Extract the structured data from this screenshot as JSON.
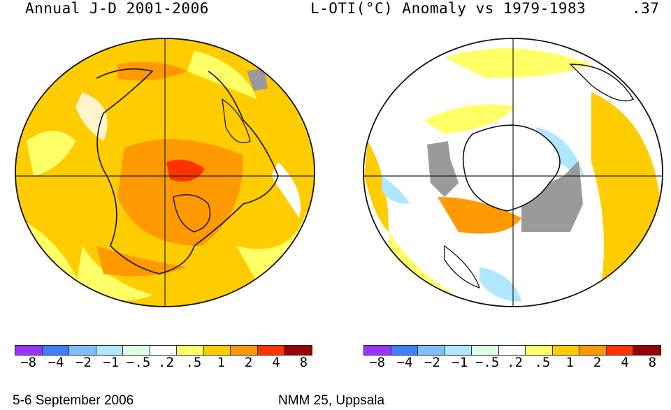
{
  "header": {
    "left_title": "Annual J-D 2001-2006",
    "right_title": "L-OTI(°C) Anomaly vs 1979-1983",
    "global_mean": ".37"
  },
  "maps": [
    {
      "name": "northern-hemisphere"
    },
    {
      "name": "southern-hemisphere"
    }
  ],
  "legend": {
    "colors": [
      "#9933ff",
      "#3f7fff",
      "#7fbfff",
      "#afe7ff",
      "#dcffe6",
      "#ffffff",
      "#ffff66",
      "#ffcc00",
      "#ff9900",
      "#ff3300",
      "#990000"
    ],
    "tick_labels": [
      "−8",
      "−4",
      "−2",
      "−1",
      "−.5",
      ".2",
      ".5",
      "1",
      "2",
      "4",
      "8"
    ]
  },
  "footer": {
    "date": "5-6 September 2006",
    "event": "NMM 25, Uppsala"
  }
}
